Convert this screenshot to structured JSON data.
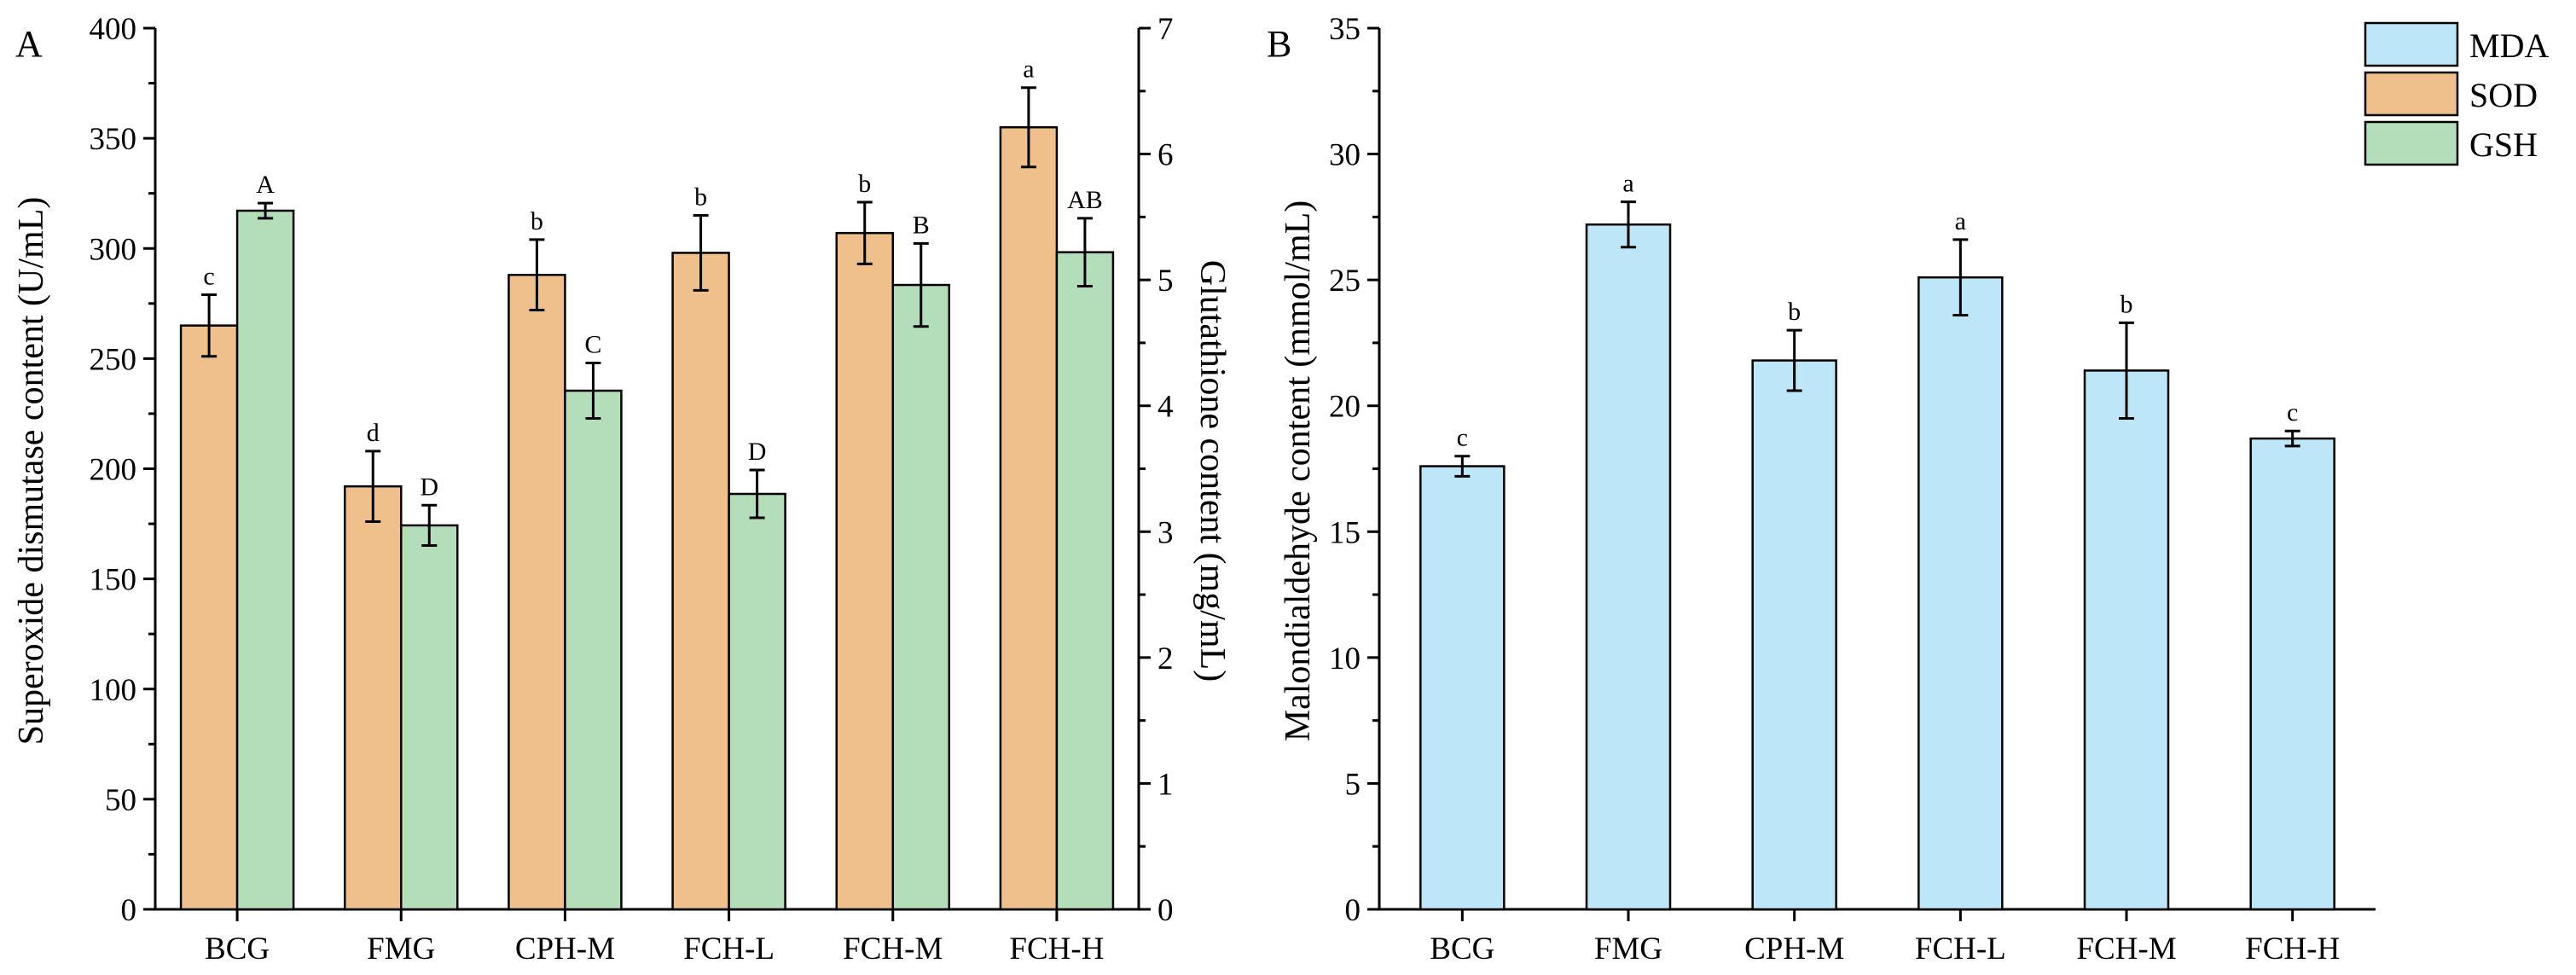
{
  "chart_data": [
    {
      "panel": "A",
      "type": "bar",
      "categories": [
        "BCG",
        "FMG",
        "CPH-M",
        "FCH-L",
        "FCH-M",
        "FCH-H"
      ],
      "ylabel": "Superoxide dismutase content (U/mL)",
      "ylabel_right": "Glutathione content (mg/mL)",
      "ylim": [
        0,
        400
      ],
      "yticks": [
        "0",
        "50",
        "100",
        "150",
        "200",
        "250",
        "300",
        "350",
        "400"
      ],
      "ylim_right": [
        0,
        7
      ],
      "yticks_right": [
        "0",
        "1",
        "2",
        "3",
        "4",
        "5",
        "6",
        "7"
      ],
      "series": [
        {
          "name": "SOD",
          "axis": "left",
          "color": "#f0c08c",
          "values": [
            265,
            192,
            288,
            298,
            307,
            355
          ],
          "errors": [
            14,
            16,
            16,
            17,
            14,
            18
          ],
          "labels": [
            "c",
            "d",
            "b",
            "b",
            "b",
            "a"
          ]
        },
        {
          "name": "GSH",
          "axis": "right",
          "color": "#b3deb9",
          "values": [
            5.55,
            3.05,
            4.12,
            3.3,
            4.96,
            5.22
          ],
          "errors": [
            0.06,
            0.16,
            0.22,
            0.19,
            0.33,
            0.27
          ],
          "labels": [
            "A",
            "D",
            "C",
            "D",
            "B",
            "AB"
          ]
        }
      ]
    },
    {
      "panel": "B",
      "type": "bar",
      "categories": [
        "BCG",
        "FMG",
        "CPH-M",
        "FCH-L",
        "FCH-M",
        "FCH-H"
      ],
      "ylabel": "Malondialdehyde content (mmol/mL)",
      "ylim": [
        0,
        35
      ],
      "yticks": [
        "0",
        "5",
        "10",
        "15",
        "20",
        "25",
        "30",
        "35"
      ],
      "series": [
        {
          "name": "MDA",
          "color": "#bde6f9",
          "values": [
            17.6,
            27.2,
            21.8,
            25.1,
            21.4,
            18.7
          ],
          "errors": [
            0.4,
            0.9,
            1.2,
            1.5,
            1.9,
            0.3
          ],
          "labels": [
            "c",
            "a",
            "b",
            "a",
            "b",
            "c"
          ]
        }
      ]
    }
  ],
  "legend": {
    "items": [
      {
        "name": "MDA",
        "color": "#bde6f9"
      },
      {
        "name": "SOD",
        "color": "#f0c08c"
      },
      {
        "name": "GSH",
        "color": "#b3deb9"
      }
    ],
    "placement": "top-right"
  }
}
